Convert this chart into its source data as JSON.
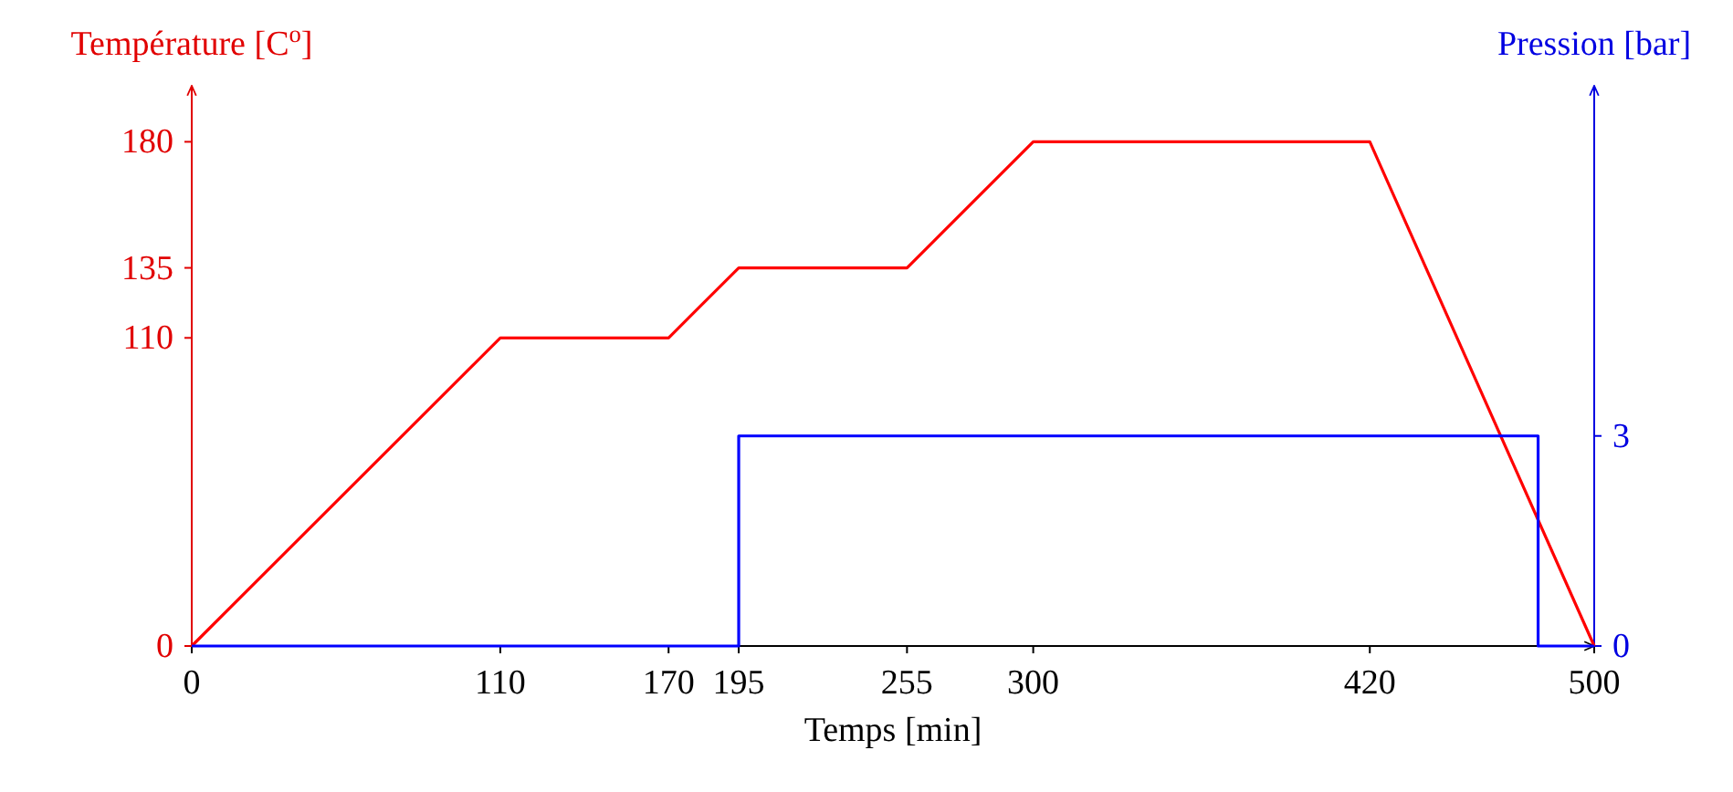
{
  "chart_data": {
    "type": "line",
    "xlabel": "Temps [min]",
    "ylabel": "Température [C$^{o}$]",
    "y2label": "Pression [bar]",
    "xlim": [
      0,
      500
    ],
    "xticks": [
      0,
      110,
      170,
      195,
      255,
      300,
      420,
      500
    ],
    "ylim": [
      0,
      200
    ],
    "yticks": [
      0,
      110,
      135,
      180
    ],
    "y2lim": [
      0,
      8
    ],
    "y2ticks": [
      0,
      3
    ],
    "series": [
      {
        "color": "#ff0000",
        "x": [
          0,
          110,
          170,
          195,
          255,
          300,
          420,
          500
        ],
        "values": [
          0,
          110,
          110,
          135,
          135,
          180,
          180,
          0
        ]
      },
      {
        "color": "#0000ff",
        "axis": "y2",
        "x": [
          0,
          195,
          195,
          480,
          480,
          500
        ],
        "values": [
          0,
          0,
          3,
          3,
          0,
          0
        ]
      }
    ]
  }
}
